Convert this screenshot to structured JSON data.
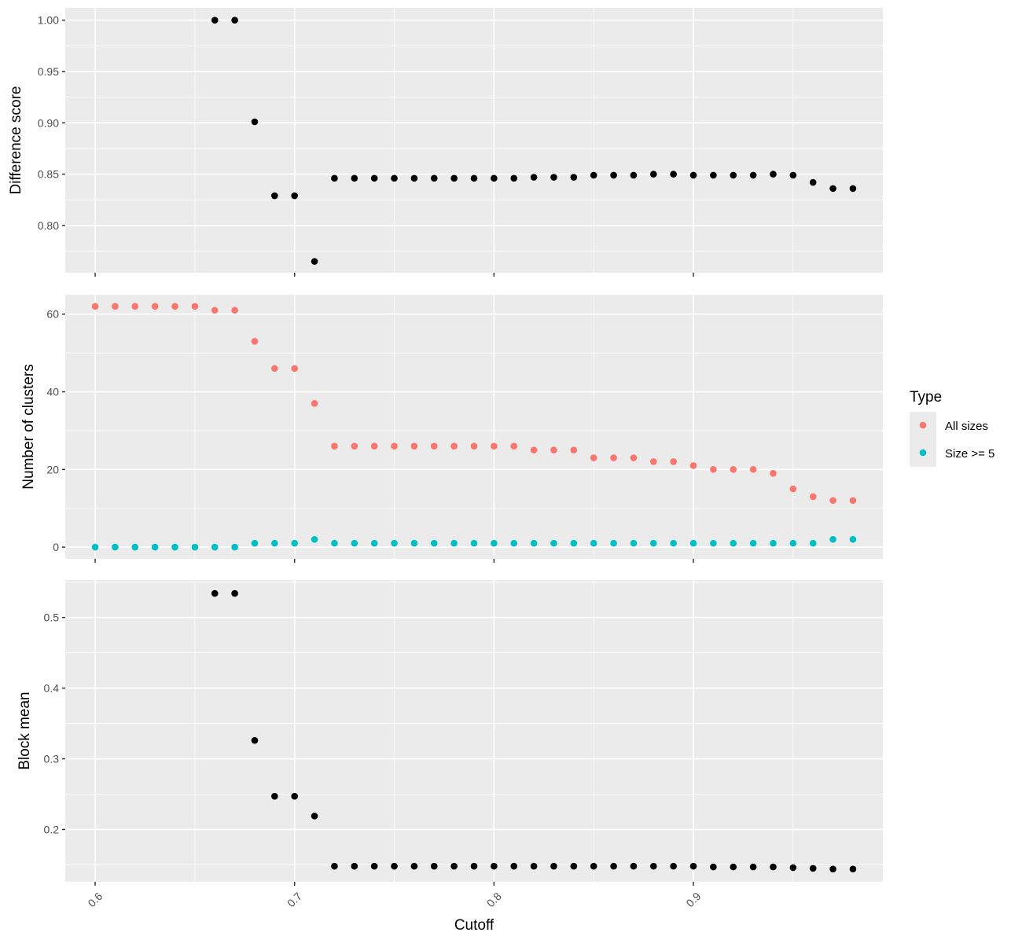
{
  "chart_data": {
    "type": "scatter",
    "layout": "3 vertically stacked panels sharing x axis",
    "xlabel": "Cutoff",
    "xlim": [
      0.585,
      0.995
    ],
    "x_ticks": [
      0.6,
      0.7,
      0.8,
      0.9
    ],
    "x_tick_labels": [
      "0.6",
      "0.7",
      "0.8",
      "0.9"
    ],
    "x_tick_label_rotation": -45,
    "x": [
      0.6,
      0.61,
      0.62,
      0.63,
      0.64,
      0.65,
      0.66,
      0.67,
      0.68,
      0.69,
      0.7,
      0.71,
      0.72,
      0.73,
      0.74,
      0.75,
      0.76,
      0.77,
      0.78,
      0.79,
      0.8,
      0.81,
      0.82,
      0.83,
      0.84,
      0.85,
      0.86,
      0.87,
      0.88,
      0.89,
      0.9,
      0.91,
      0.92,
      0.93,
      0.94,
      0.95,
      0.96,
      0.97,
      0.98
    ],
    "grid": true,
    "legend": {
      "title": "Type",
      "placement": "right",
      "entries": [
        {
          "label": "All sizes",
          "color": "#f8766d"
        },
        {
          "label": "Size >= 5",
          "color": "#00bfc4"
        }
      ]
    },
    "panels": [
      {
        "ylabel": "Difference score",
        "ylim": [
          0.754,
          1.012
        ],
        "y_ticks": [
          0.8,
          0.85,
          0.9,
          0.95,
          1.0
        ],
        "y_tick_labels": [
          "0.80",
          "0.85",
          "0.90",
          "0.95",
          "1.00"
        ],
        "show_x_tick_labels": false,
        "series": [
          {
            "color": "#000000",
            "x": [
              0.66,
              0.67,
              0.68,
              0.69,
              0.7,
              0.71,
              0.72,
              0.73,
              0.74,
              0.75,
              0.76,
              0.77,
              0.78,
              0.79,
              0.8,
              0.81,
              0.82,
              0.83,
              0.84,
              0.85,
              0.86,
              0.87,
              0.88,
              0.89,
              0.9,
              0.91,
              0.92,
              0.93,
              0.94,
              0.95,
              0.96,
              0.97,
              0.98
            ],
            "values": [
              1.0,
              1.0,
              0.901,
              0.829,
              0.829,
              0.765,
              0.846,
              0.846,
              0.846,
              0.846,
              0.846,
              0.846,
              0.846,
              0.846,
              0.846,
              0.846,
              0.847,
              0.847,
              0.847,
              0.849,
              0.849,
              0.849,
              0.85,
              0.85,
              0.849,
              0.849,
              0.849,
              0.849,
              0.85,
              0.849,
              0.842,
              0.836,
              0.836
            ]
          }
        ]
      },
      {
        "ylabel": "Number of clusters",
        "ylim": [
          -3.0,
          65.0
        ],
        "y_ticks": [
          0,
          20,
          40,
          60
        ],
        "y_tick_labels": [
          "0",
          "20",
          "40",
          "60"
        ],
        "show_x_tick_labels": false,
        "series": [
          {
            "name": "All sizes",
            "color": "#f8766d",
            "values": [
              62,
              62,
              62,
              62,
              62,
              62,
              61,
              61,
              53,
              46,
              46,
              37,
              26,
              26,
              26,
              26,
              26,
              26,
              26,
              26,
              26,
              26,
              25,
              25,
              25,
              23,
              23,
              23,
              22,
              22,
              21,
              20,
              20,
              20,
              19,
              15,
              13,
              12,
              12
            ]
          },
          {
            "name": "Size >= 5",
            "color": "#00bfc4",
            "values": [
              0,
              0,
              0,
              0,
              0,
              0,
              0,
              0,
              1,
              1,
              1,
              2,
              1,
              1,
              1,
              1,
              1,
              1,
              1,
              1,
              1,
              1,
              1,
              1,
              1,
              1,
              1,
              1,
              1,
              1,
              1,
              1,
              1,
              1,
              1,
              1,
              1,
              2,
              2
            ]
          }
        ]
      },
      {
        "ylabel": "Block mean",
        "ylim": [
          0.126,
          0.553
        ],
        "y_ticks": [
          0.2,
          0.3,
          0.4,
          0.5
        ],
        "y_tick_labels": [
          "0.2",
          "0.3",
          "0.4",
          "0.5"
        ],
        "show_x_tick_labels": true,
        "series": [
          {
            "color": "#000000",
            "x": [
              0.66,
              0.67,
              0.68,
              0.69,
              0.7,
              0.71,
              0.72,
              0.73,
              0.74,
              0.75,
              0.76,
              0.77,
              0.78,
              0.79,
              0.8,
              0.81,
              0.82,
              0.83,
              0.84,
              0.85,
              0.86,
              0.87,
              0.88,
              0.89,
              0.9,
              0.91,
              0.92,
              0.93,
              0.94,
              0.95,
              0.96,
              0.97,
              0.98
            ],
            "values": [
              0.534,
              0.534,
              0.326,
              0.247,
              0.247,
              0.219,
              0.148,
              0.148,
              0.148,
              0.148,
              0.148,
              0.148,
              0.148,
              0.148,
              0.148,
              0.148,
              0.148,
              0.148,
              0.148,
              0.148,
              0.148,
              0.148,
              0.148,
              0.148,
              0.148,
              0.147,
              0.147,
              0.147,
              0.147,
              0.146,
              0.145,
              0.144,
              0.144
            ]
          }
        ]
      }
    ]
  }
}
